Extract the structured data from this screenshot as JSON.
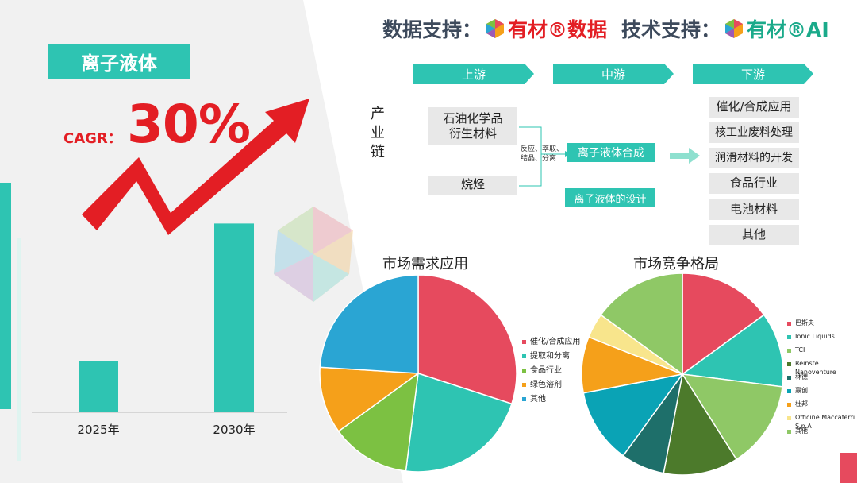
{
  "header": {
    "data_support_label": "数据支持：",
    "data_brand": "有材®数据",
    "tech_support_label": "技术支持：",
    "tech_brand": "有材®AI"
  },
  "title": "离子液体",
  "cagr": {
    "label": "CAGR：",
    "value": "30%"
  },
  "colors": {
    "teal": "#2ec4b2",
    "red": "#e31e24",
    "pie": [
      "#e64a5e",
      "#2ec4b2",
      "#7cc142",
      "#f5a01a",
      "#2aa5d3",
      "#4c7a2b",
      "#1e6f6a",
      "#0aa3b5",
      "#f8e58c",
      "#8fc866"
    ]
  },
  "supply_chain": {
    "label": "产业链",
    "upstream": {
      "label": "上游",
      "items": [
        "石油化学品\n衍生材料",
        "烷烃"
      ]
    },
    "midstream": {
      "label": "中游",
      "process_note": "反应、萃取、结晶、分离",
      "items": [
        "离子液体合成",
        "离子液体的设计"
      ]
    },
    "downstream": {
      "label": "下游",
      "items": [
        "催化/合成应用",
        "核工业废料处理",
        "润滑材料的开发",
        "食品行业",
        "电池材料",
        "其他"
      ]
    }
  },
  "chart_data": [
    {
      "type": "bar",
      "categories": [
        "2025年",
        "2030年"
      ],
      "values": [
        1.0,
        3.71
      ],
      "title": "",
      "xlabel": "",
      "ylabel": "",
      "ylim": [
        0,
        4.2
      ]
    },
    {
      "type": "pie",
      "title": "市场需求应用",
      "labels": [
        "催化/合成应用",
        "提取和分离",
        "食品行业",
        "绿色溶剂",
        "其他"
      ],
      "values": [
        30,
        22,
        13,
        11,
        24
      ],
      "legend": "right"
    },
    {
      "type": "pie",
      "title": "市场竞争格局",
      "labels": [
        "巴斯夫",
        "Ionic Liquids",
        "TCI",
        "Reinste Nanoventure",
        "林德",
        "赢创",
        "杜邦",
        "Officine Maccaferri S.p.A",
        "其他"
      ],
      "values": [
        15,
        12,
        14,
        12,
        7,
        12,
        9,
        4,
        15
      ],
      "legend": "right"
    }
  ]
}
